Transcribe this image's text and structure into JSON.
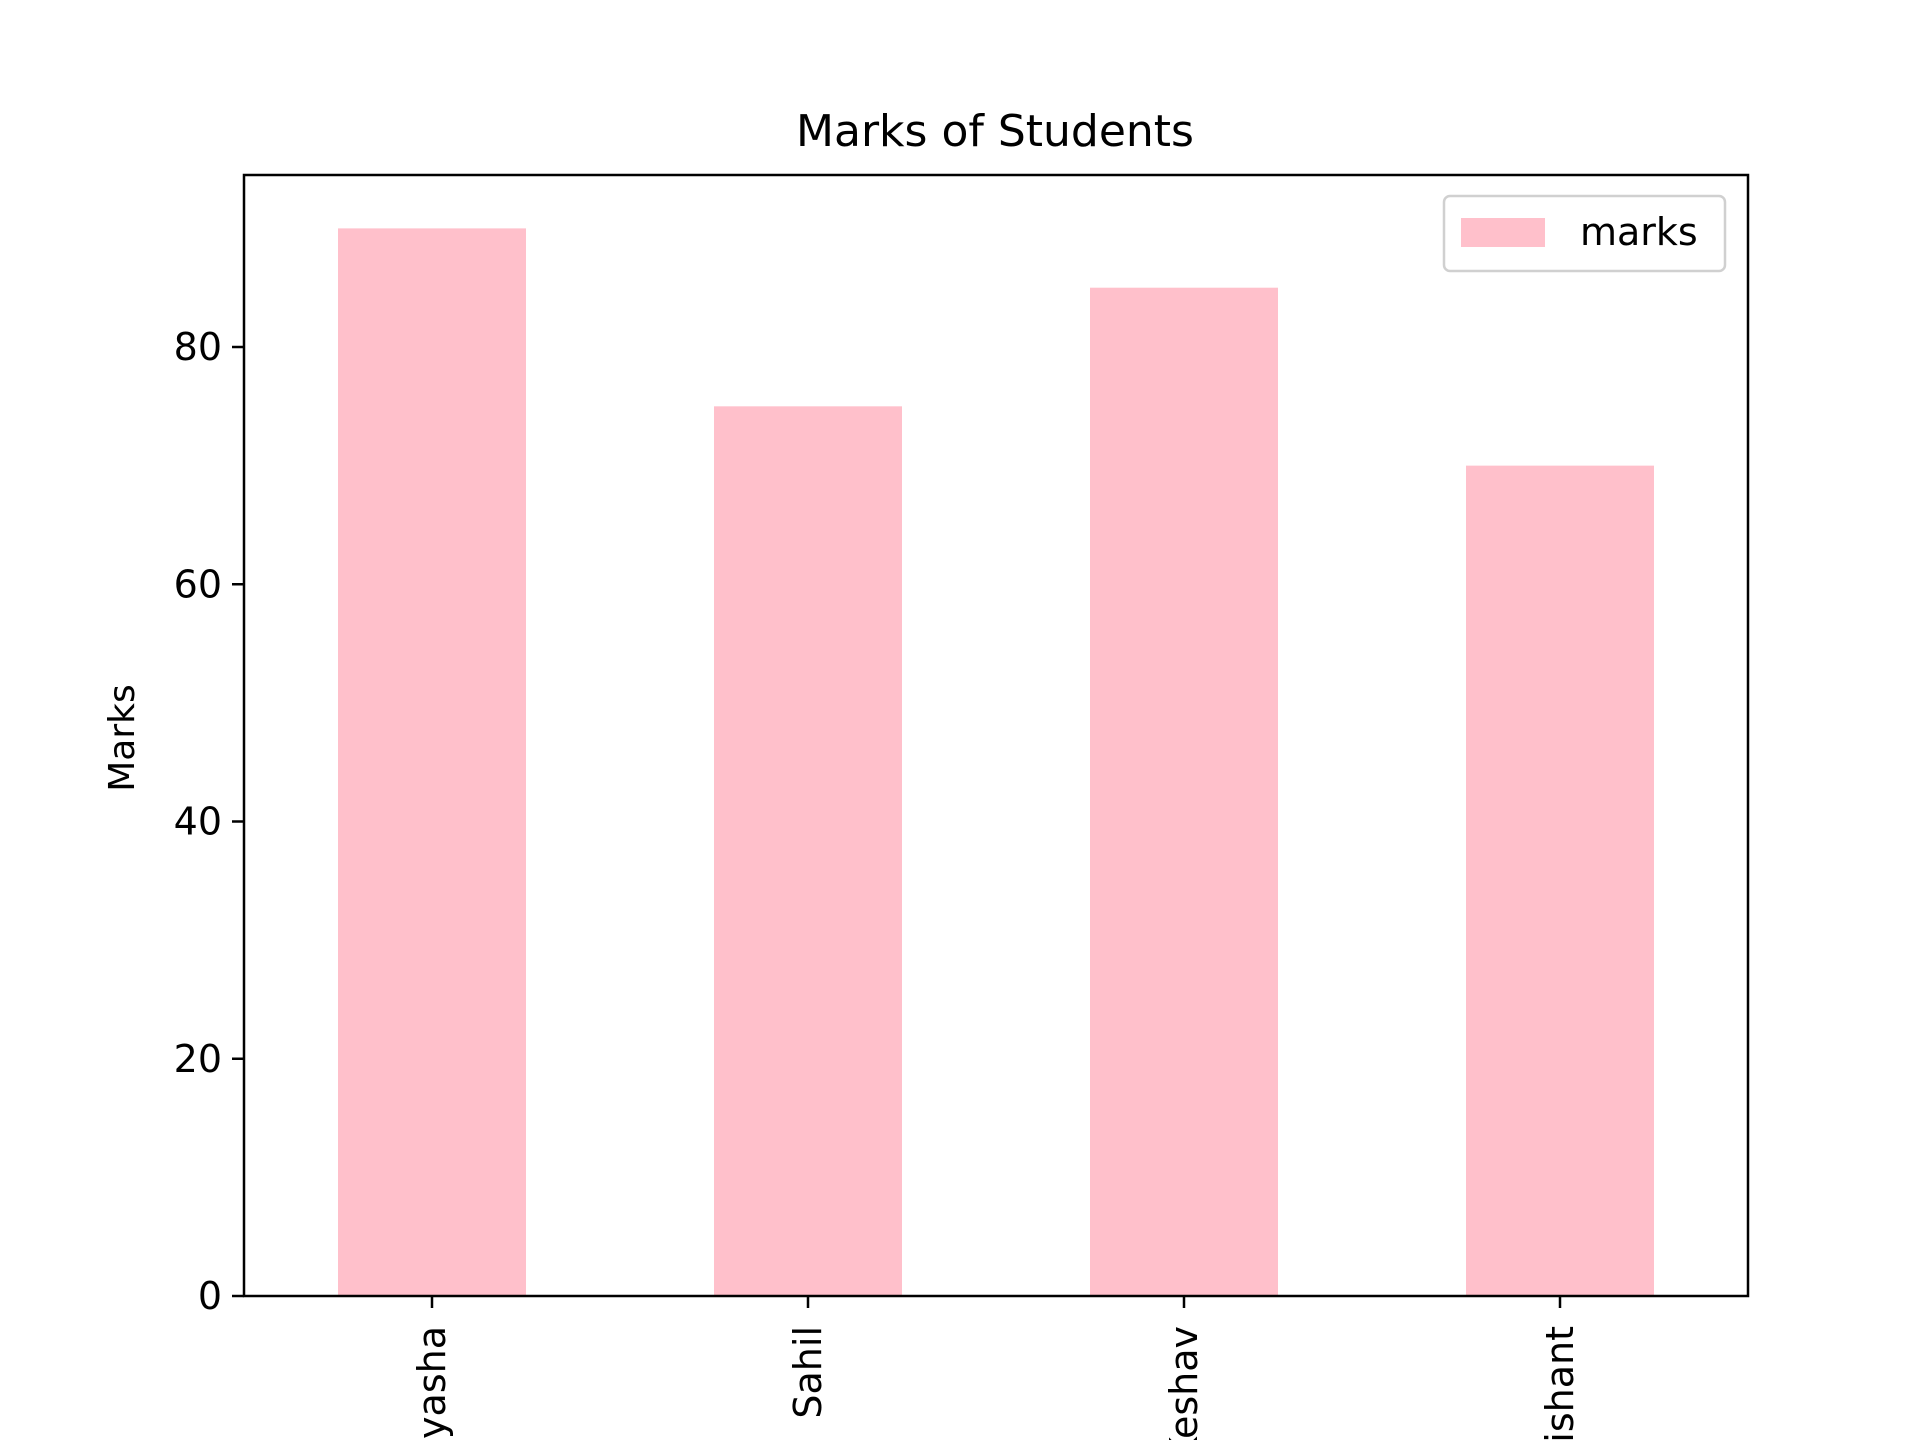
{
  "chart_data": {
    "type": "bar",
    "title": "Marks of Students",
    "xlabel": "",
    "ylabel": "Marks",
    "categories": [
      "Vidyasha",
      "Sahil",
      "Keshav",
      "Nishant"
    ],
    "series": [
      {
        "name": "marks",
        "values": [
          90,
          75,
          85,
          70
        ]
      }
    ],
    "ylim": [
      0,
      94.5
    ],
    "yticks": [
      0,
      20,
      40,
      60,
      80
    ],
    "grid": false,
    "legend": "top-right",
    "tick_label_rotation": 90,
    "colors": {
      "bar": "#ffc0cb",
      "axis": "#000000",
      "legend_border": "#d0d0d0"
    }
  }
}
